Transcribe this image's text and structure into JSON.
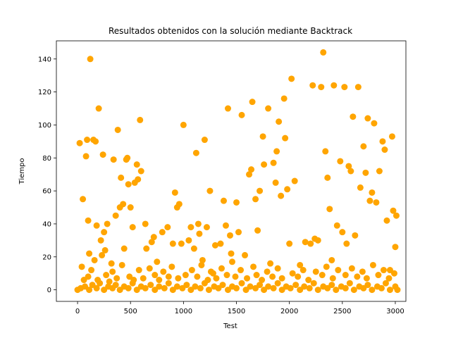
{
  "chart_data": {
    "type": "scatter",
    "title": "Resultados obtenidos con la solución mediante Backtrack",
    "xlabel": "Test",
    "ylabel": "Tiempo",
    "xlim": [
      -200,
      3100
    ],
    "ylim": [
      -7,
      151
    ],
    "xticks": [
      0,
      500,
      1000,
      1500,
      2000,
      2500,
      3000
    ],
    "yticks": [
      0,
      20,
      40,
      60,
      80,
      100,
      120,
      140
    ],
    "grid": false,
    "marker_color": "#FFA500",
    "series": [
      {
        "points": [
          [
            20,
            89
          ],
          [
            50,
            55
          ],
          [
            80,
            81
          ],
          [
            90,
            91
          ],
          [
            100,
            42
          ],
          [
            110,
            22
          ],
          [
            120,
            140
          ],
          [
            150,
            91
          ],
          [
            170,
            90
          ],
          [
            180,
            39
          ],
          [
            200,
            110
          ],
          [
            220,
            30
          ],
          [
            240,
            82
          ],
          [
            250,
            35
          ],
          [
            260,
            24
          ],
          [
            280,
            40
          ],
          [
            320,
            16
          ],
          [
            340,
            79
          ],
          [
            360,
            45
          ],
          [
            380,
            97
          ],
          [
            400,
            50
          ],
          [
            410,
            68
          ],
          [
            430,
            52
          ],
          [
            440,
            25
          ],
          [
            460,
            79
          ],
          [
            470,
            80
          ],
          [
            480,
            64
          ],
          [
            500,
            50
          ],
          [
            520,
            38
          ],
          [
            540,
            65
          ],
          [
            560,
            76
          ],
          [
            570,
            67
          ],
          [
            590,
            103
          ],
          [
            600,
            72
          ],
          [
            640,
            40
          ],
          [
            650,
            25
          ],
          [
            700,
            29
          ],
          [
            720,
            32
          ],
          [
            750,
            17
          ],
          [
            800,
            35
          ],
          [
            850,
            38
          ],
          [
            900,
            28
          ],
          [
            920,
            59
          ],
          [
            940,
            50
          ],
          [
            960,
            52
          ],
          [
            980,
            28
          ],
          [
            1000,
            100
          ],
          [
            1050,
            30
          ],
          [
            1070,
            38
          ],
          [
            1100,
            25
          ],
          [
            1120,
            83
          ],
          [
            1140,
            40
          ],
          [
            1150,
            34
          ],
          [
            1180,
            18
          ],
          [
            1200,
            91
          ],
          [
            1220,
            38
          ],
          [
            1250,
            60
          ],
          [
            1280,
            10
          ],
          [
            1300,
            27
          ],
          [
            1350,
            28
          ],
          [
            1380,
            54
          ],
          [
            1400,
            39
          ],
          [
            1420,
            110
          ],
          [
            1440,
            33
          ],
          [
            1450,
            22
          ],
          [
            1500,
            53
          ],
          [
            1520,
            35
          ],
          [
            1550,
            106
          ],
          [
            1580,
            21
          ],
          [
            1620,
            70
          ],
          [
            1640,
            73
          ],
          [
            1650,
            114
          ],
          [
            1680,
            55
          ],
          [
            1700,
            36
          ],
          [
            1720,
            60
          ],
          [
            1750,
            93
          ],
          [
            1760,
            76
          ],
          [
            1800,
            110
          ],
          [
            1820,
            16
          ],
          [
            1850,
            77
          ],
          [
            1870,
            65
          ],
          [
            1880,
            84
          ],
          [
            1900,
            102
          ],
          [
            1920,
            57
          ],
          [
            1950,
            116
          ],
          [
            1960,
            92
          ],
          [
            1980,
            61
          ],
          [
            2000,
            28
          ],
          [
            2020,
            128
          ],
          [
            2050,
            66
          ],
          [
            2100,
            15
          ],
          [
            2150,
            29
          ],
          [
            2200,
            28
          ],
          [
            2220,
            124
          ],
          [
            2240,
            31
          ],
          [
            2270,
            30
          ],
          [
            2300,
            123
          ],
          [
            2320,
            144
          ],
          [
            2340,
            84
          ],
          [
            2360,
            68
          ],
          [
            2380,
            49
          ],
          [
            2400,
            18
          ],
          [
            2420,
            124
          ],
          [
            2450,
            39
          ],
          [
            2480,
            78
          ],
          [
            2500,
            35
          ],
          [
            2520,
            123
          ],
          [
            2540,
            28
          ],
          [
            2560,
            75
          ],
          [
            2580,
            72
          ],
          [
            2600,
            105
          ],
          [
            2620,
            33
          ],
          [
            2650,
            123
          ],
          [
            2670,
            62
          ],
          [
            2700,
            87
          ],
          [
            2720,
            71
          ],
          [
            2740,
            104
          ],
          [
            2760,
            54
          ],
          [
            2780,
            59
          ],
          [
            2800,
            101
          ],
          [
            2820,
            53
          ],
          [
            2850,
            72
          ],
          [
            2880,
            90
          ],
          [
            2900,
            85
          ],
          [
            2920,
            42
          ],
          [
            2950,
            12
          ],
          [
            2970,
            93
          ],
          [
            2980,
            48
          ],
          [
            3000,
            26
          ],
          [
            3010,
            45
          ],
          [
            40,
            14
          ],
          [
            60,
            6
          ],
          [
            100,
            8
          ],
          [
            130,
            12
          ],
          [
            160,
            18
          ],
          [
            190,
            6
          ],
          [
            230,
            21
          ],
          [
            270,
            9
          ],
          [
            300,
            5
          ],
          [
            330,
            11
          ],
          [
            370,
            7
          ],
          [
            420,
            15
          ],
          [
            490,
            8
          ],
          [
            530,
            6
          ],
          [
            580,
            12
          ],
          [
            620,
            7
          ],
          [
            680,
            13
          ],
          [
            730,
            9
          ],
          [
            770,
            6
          ],
          [
            810,
            11
          ],
          [
            860,
            8
          ],
          [
            890,
            14
          ],
          [
            950,
            7
          ],
          [
            1020,
            9
          ],
          [
            1080,
            12
          ],
          [
            1130,
            8
          ],
          [
            1170,
            15
          ],
          [
            1230,
            6
          ],
          [
            1260,
            11
          ],
          [
            1310,
            7
          ],
          [
            1360,
            13
          ],
          [
            1410,
            9
          ],
          [
            1460,
            17
          ],
          [
            1490,
            8
          ],
          [
            1540,
            12
          ],
          [
            1600,
            7
          ],
          [
            1660,
            14
          ],
          [
            1690,
            9
          ],
          [
            1740,
            6
          ],
          [
            1790,
            11
          ],
          [
            1840,
            8
          ],
          [
            1890,
            13
          ],
          [
            1930,
            7
          ],
          [
            2030,
            10
          ],
          [
            2080,
            8
          ],
          [
            2130,
            12
          ],
          [
            2180,
            6
          ],
          [
            2250,
            11
          ],
          [
            2310,
            9
          ],
          [
            2350,
            14
          ],
          [
            2410,
            7
          ],
          [
            2460,
            12
          ],
          [
            2530,
            9
          ],
          [
            2590,
            13
          ],
          [
            2640,
            8
          ],
          [
            2690,
            11
          ],
          [
            2730,
            7
          ],
          [
            2790,
            15
          ],
          [
            2840,
            9
          ],
          [
            2890,
            12
          ],
          [
            2940,
            7
          ],
          [
            2990,
            10
          ],
          [
            0,
            0
          ],
          [
            30,
            1
          ],
          [
            70,
            2
          ],
          [
            110,
            0
          ],
          [
            140,
            3
          ],
          [
            180,
            1
          ],
          [
            210,
            4
          ],
          [
            250,
            0
          ],
          [
            290,
            2
          ],
          [
            330,
            1
          ],
          [
            360,
            3
          ],
          [
            400,
            0
          ],
          [
            440,
            2
          ],
          [
            480,
            1
          ],
          [
            520,
            4
          ],
          [
            560,
            0
          ],
          [
            600,
            2
          ],
          [
            640,
            1
          ],
          [
            690,
            3
          ],
          [
            730,
            0
          ],
          [
            770,
            2
          ],
          [
            820,
            1
          ],
          [
            860,
            4
          ],
          [
            900,
            0
          ],
          [
            940,
            2
          ],
          [
            990,
            1
          ],
          [
            1030,
            3
          ],
          [
            1070,
            0
          ],
          [
            1110,
            2
          ],
          [
            1160,
            1
          ],
          [
            1200,
            4
          ],
          [
            1240,
            0
          ],
          [
            1290,
            2
          ],
          [
            1330,
            1
          ],
          [
            1370,
            3
          ],
          [
            1420,
            0
          ],
          [
            1460,
            2
          ],
          [
            1500,
            1
          ],
          [
            1550,
            4
          ],
          [
            1590,
            0
          ],
          [
            1630,
            2
          ],
          [
            1680,
            1
          ],
          [
            1720,
            3
          ],
          [
            1760,
            0
          ],
          [
            1800,
            2
          ],
          [
            1850,
            1
          ],
          [
            1890,
            4
          ],
          [
            1930,
            0
          ],
          [
            1970,
            2
          ],
          [
            2010,
            1
          ],
          [
            2060,
            3
          ],
          [
            2100,
            0
          ],
          [
            2140,
            2
          ],
          [
            2190,
            1
          ],
          [
            2230,
            4
          ],
          [
            2270,
            0
          ],
          [
            2320,
            2
          ],
          [
            2360,
            1
          ],
          [
            2400,
            3
          ],
          [
            2440,
            0
          ],
          [
            2490,
            2
          ],
          [
            2530,
            1
          ],
          [
            2570,
            4
          ],
          [
            2610,
            0
          ],
          [
            2660,
            2
          ],
          [
            2700,
            1
          ],
          [
            2740,
            3
          ],
          [
            2780,
            0
          ],
          [
            2830,
            2
          ],
          [
            2870,
            1
          ],
          [
            2910,
            4
          ],
          [
            2950,
            0
          ],
          [
            3000,
            2
          ],
          [
            3020,
            0
          ]
        ]
      }
    ]
  }
}
